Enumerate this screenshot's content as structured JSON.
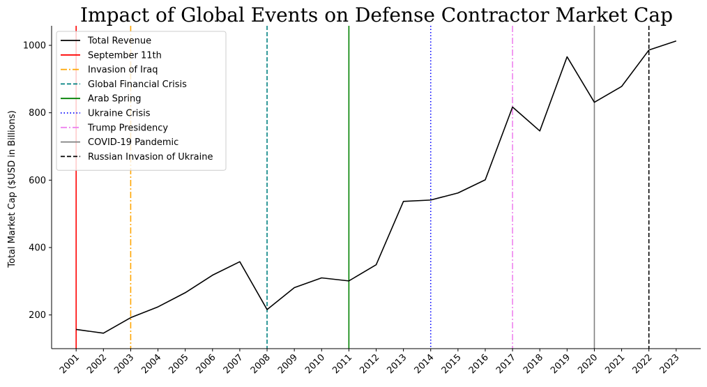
{
  "chart_data": {
    "type": "line",
    "title": "Impact of Global Events on Defense Contractor Market Cap",
    "xlabel": "",
    "ylabel": "Total Market Cap ($USD in Billions)",
    "x": [
      2001,
      2002,
      2003,
      2004,
      2005,
      2006,
      2007,
      2008,
      2009,
      2010,
      2011,
      2012,
      2013,
      2014,
      2015,
      2016,
      2017,
      2018,
      2019,
      2020,
      2021,
      2022,
      2023
    ],
    "xtick_labels": [
      "2001",
      "2002",
      "2003",
      "2004",
      "2005",
      "2006",
      "2007",
      "2008",
      "2009",
      "2010",
      "2011",
      "2012",
      "2013",
      "2014",
      "2015",
      "2016",
      "2017",
      "2018",
      "2019",
      "2020",
      "2021",
      "2022",
      "2023"
    ],
    "series": [
      {
        "name": "Total Revenue",
        "color": "#000000",
        "values": [
          157,
          146,
          192,
          224,
          266,
          318,
          358,
          216,
          281,
          310,
          301,
          349,
          537,
          541,
          562,
          601,
          817,
          746,
          966,
          831,
          878,
          986,
          1013
        ]
      }
    ],
    "events": [
      {
        "name": "September 11th",
        "year": 2001,
        "color": "#ff0000",
        "style": "solid"
      },
      {
        "name": "Invasion of Iraq",
        "year": 2003,
        "color": "#ffa500",
        "style": "dashdot"
      },
      {
        "name": "Global Financial Crisis",
        "year": 2008,
        "color": "#008080",
        "style": "dashed"
      },
      {
        "name": "Arab Spring",
        "year": 2011,
        "color": "#008000",
        "style": "solid"
      },
      {
        "name": "Ukraine Crisis",
        "year": 2014,
        "color": "#0000ff",
        "style": "dotted"
      },
      {
        "name": "Trump Presidency",
        "year": 2017,
        "color": "#ee82ee",
        "style": "dashdot"
      },
      {
        "name": "COVID-19 Pandemic",
        "year": 2020,
        "color": "#808080",
        "style": "solid"
      },
      {
        "name": "Russian Invasion of Ukraine",
        "year": 2022,
        "color": "#000000",
        "style": "dashed"
      }
    ],
    "yticks": [
      200,
      400,
      600,
      800,
      1000
    ],
    "ylim": [
      100,
      1058
    ],
    "xlim": [
      2000.1,
      2023.9
    ],
    "grid": false,
    "legend_position": "top-left"
  }
}
